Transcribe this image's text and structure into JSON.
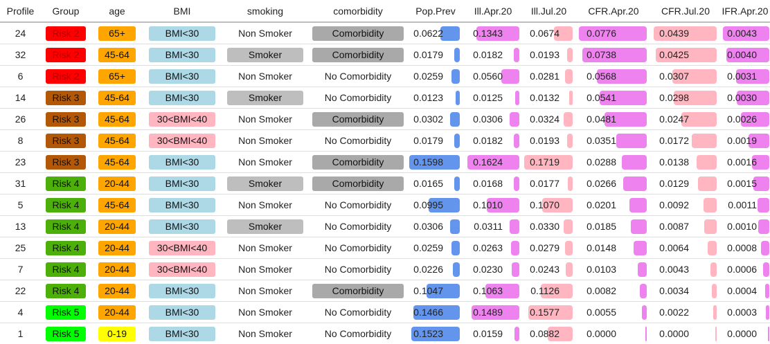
{
  "columns": [
    "Profile",
    "Group",
    "age",
    "BMI",
    "smoking",
    "comorbidity",
    "Pop.Prev",
    "Ill.Apr.20",
    "Ill.Jul.20",
    "CFR.Apr.20",
    "CFR.Jul.20",
    "IFR.Apr.20"
  ],
  "colors": {
    "group": {
      "Risk 2": "#ff0000",
      "Risk 3": "#b35806",
      "Risk 4": "#4daf0a",
      "Risk 5": "#00ff00"
    },
    "age": {
      "65+": "#ffa500",
      "45-64": "#ffa500",
      "20-44": "#ffa500",
      "0-19": "#ffff00"
    },
    "bmi": {
      "BMI<30": "#add8e6",
      "30<BMI<40": "#ffb6c1"
    },
    "smoker": "#bebebe",
    "comorbidity": "#a9a9a9",
    "pop_prev_bar": "#6495ed",
    "ill_bar": "#ee82ee",
    "cfr_ifr_bar": "#ffb6c1",
    "cfr_apr_bar": "#ee82ee"
  },
  "rows": [
    {
      "profile": "24",
      "group": "Risk 2",
      "age": "65+",
      "bmi": "BMI<30",
      "smoking": "Non Smoker",
      "comorbidity": "Comorbidity",
      "pop_prev": "0.0622",
      "ill_apr": "0.1343",
      "ill_jul": "0.0674",
      "cfr_apr": "0.0776",
      "cfr_jul": "0.0439",
      "ifr_apr": "0.0043"
    },
    {
      "profile": "32",
      "group": "Risk 2",
      "age": "45-64",
      "bmi": "BMI<30",
      "smoking": "Smoker",
      "comorbidity": "Comorbidity",
      "pop_prev": "0.0179",
      "ill_apr": "0.0182",
      "ill_jul": "0.0193",
      "cfr_apr": "0.0738",
      "cfr_jul": "0.0425",
      "ifr_apr": "0.0040"
    },
    {
      "profile": "6",
      "group": "Risk 2",
      "age": "65+",
      "bmi": "BMI<30",
      "smoking": "Non Smoker",
      "comorbidity": "No Comorbidity",
      "pop_prev": "0.0259",
      "ill_apr": "0.0560",
      "ill_jul": "0.0281",
      "cfr_apr": "0.0568",
      "cfr_jul": "0.0307",
      "ifr_apr": "0.0031"
    },
    {
      "profile": "14",
      "group": "Risk 3",
      "age": "45-64",
      "bmi": "BMI<30",
      "smoking": "Smoker",
      "comorbidity": "No Comorbidity",
      "pop_prev": "0.0123",
      "ill_apr": "0.0125",
      "ill_jul": "0.0132",
      "cfr_apr": "0.0541",
      "cfr_jul": "0.0298",
      "ifr_apr": "0.0030"
    },
    {
      "profile": "26",
      "group": "Risk 3",
      "age": "45-64",
      "bmi": "30<BMI<40",
      "smoking": "Non Smoker",
      "comorbidity": "Comorbidity",
      "pop_prev": "0.0302",
      "ill_apr": "0.0306",
      "ill_jul": "0.0324",
      "cfr_apr": "0.0481",
      "cfr_jul": "0.0247",
      "ifr_apr": "0.0026"
    },
    {
      "profile": "8",
      "group": "Risk 3",
      "age": "45-64",
      "bmi": "30<BMI<40",
      "smoking": "Non Smoker",
      "comorbidity": "No Comorbidity",
      "pop_prev": "0.0179",
      "ill_apr": "0.0182",
      "ill_jul": "0.0193",
      "cfr_apr": "0.0351",
      "cfr_jul": "0.0172",
      "ifr_apr": "0.0019"
    },
    {
      "profile": "23",
      "group": "Risk 3",
      "age": "45-64",
      "bmi": "BMI<30",
      "smoking": "Non Smoker",
      "comorbidity": "Comorbidity",
      "pop_prev": "0.1598",
      "ill_apr": "0.1624",
      "ill_jul": "0.1719",
      "cfr_apr": "0.0288",
      "cfr_jul": "0.0138",
      "ifr_apr": "0.0016"
    },
    {
      "profile": "31",
      "group": "Risk 4",
      "age": "20-44",
      "bmi": "BMI<30",
      "smoking": "Smoker",
      "comorbidity": "Comorbidity",
      "pop_prev": "0.0165",
      "ill_apr": "0.0168",
      "ill_jul": "0.0177",
      "cfr_apr": "0.0266",
      "cfr_jul": "0.0129",
      "ifr_apr": "0.0015"
    },
    {
      "profile": "5",
      "group": "Risk 4",
      "age": "45-64",
      "bmi": "BMI<30",
      "smoking": "Non Smoker",
      "comorbidity": "No Comorbidity",
      "pop_prev": "0.0995",
      "ill_apr": "0.1010",
      "ill_jul": "0.1070",
      "cfr_apr": "0.0201",
      "cfr_jul": "0.0092",
      "ifr_apr": "0.0011"
    },
    {
      "profile": "13",
      "group": "Risk 4",
      "age": "20-44",
      "bmi": "BMI<30",
      "smoking": "Smoker",
      "comorbidity": "No Comorbidity",
      "pop_prev": "0.0306",
      "ill_apr": "0.0311",
      "ill_jul": "0.0330",
      "cfr_apr": "0.0185",
      "cfr_jul": "0.0087",
      "ifr_apr": "0.0010"
    },
    {
      "profile": "25",
      "group": "Risk 4",
      "age": "20-44",
      "bmi": "30<BMI<40",
      "smoking": "Non Smoker",
      "comorbidity": "No Comorbidity",
      "pop_prev": "0.0259",
      "ill_apr": "0.0263",
      "ill_jul": "0.0279",
      "cfr_apr": "0.0148",
      "cfr_jul": "0.0064",
      "ifr_apr": "0.0008"
    },
    {
      "profile": "7",
      "group": "Risk 4",
      "age": "20-44",
      "bmi": "30<BMI<40",
      "smoking": "Non Smoker",
      "comorbidity": "No Comorbidity",
      "pop_prev": "0.0226",
      "ill_apr": "0.0230",
      "ill_jul": "0.0243",
      "cfr_apr": "0.0103",
      "cfr_jul": "0.0043",
      "ifr_apr": "0.0006"
    },
    {
      "profile": "22",
      "group": "Risk 4",
      "age": "20-44",
      "bmi": "BMI<30",
      "smoking": "Non Smoker",
      "comorbidity": "Comorbidity",
      "pop_prev": "0.1047",
      "ill_apr": "0.1063",
      "ill_jul": "0.1126",
      "cfr_apr": "0.0082",
      "cfr_jul": "0.0034",
      "ifr_apr": "0.0004"
    },
    {
      "profile": "4",
      "group": "Risk 5",
      "age": "20-44",
      "bmi": "BMI<30",
      "smoking": "Non Smoker",
      "comorbidity": "No Comorbidity",
      "pop_prev": "0.1466",
      "ill_apr": "0.1489",
      "ill_jul": "0.1577",
      "cfr_apr": "0.0055",
      "cfr_jul": "0.0022",
      "ifr_apr": "0.0003"
    },
    {
      "profile": "1",
      "group": "Risk 5",
      "age": "0-19",
      "bmi": "BMI<30",
      "smoking": "Non Smoker",
      "comorbidity": "No Comorbidity",
      "pop_prev": "0.1523",
      "ill_apr": "0.0159",
      "ill_jul": "0.0882",
      "cfr_apr": "0.0000",
      "cfr_jul": "0.0000",
      "ifr_apr": "0.0000"
    }
  ]
}
